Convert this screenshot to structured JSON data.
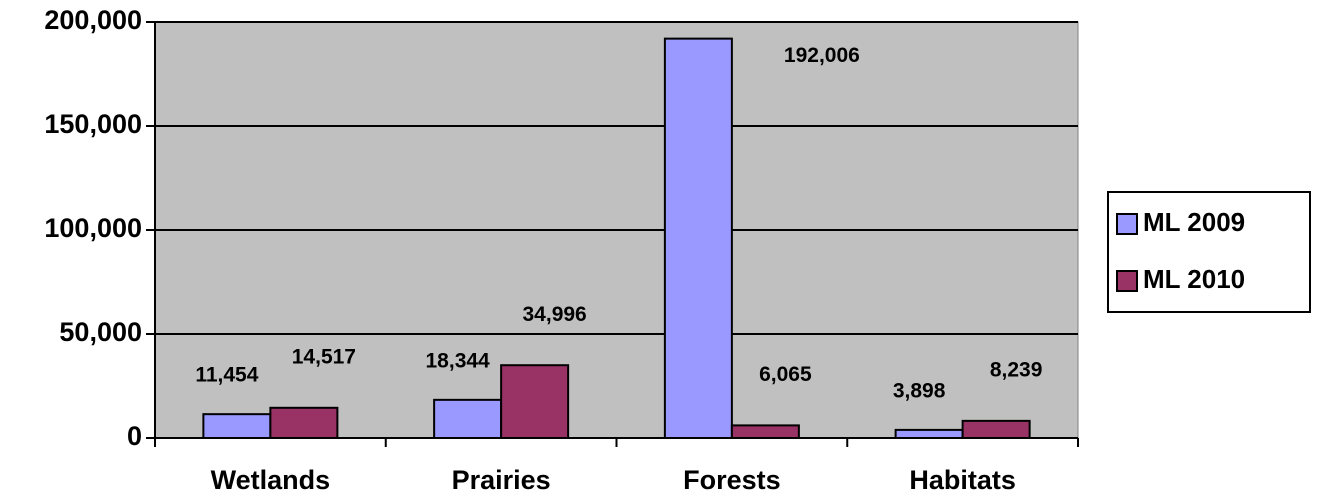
{
  "chart_data": {
    "type": "bar",
    "categories": [
      "Wetlands",
      "Prairies",
      "Forests",
      "Habitats"
    ],
    "series": [
      {
        "name": "ML 2009",
        "color": "#9999ff",
        "values": [
          11454,
          18344,
          192006,
          3898
        ],
        "value_labels": [
          "11,454",
          "18,344",
          "192,006",
          "3,898"
        ]
      },
      {
        "name": "ML 2010",
        "color": "#993366",
        "values": [
          14517,
          34996,
          6065,
          8239
        ],
        "value_labels": [
          "14,517",
          "34,996",
          "6,065",
          "8,239"
        ]
      }
    ],
    "ylim": [
      0,
      200000
    ],
    "yticks": [
      {
        "value": 0,
        "label": "0"
      },
      {
        "value": 50000,
        "label": "50,000"
      },
      {
        "value": 100000,
        "label": "100,000"
      },
      {
        "value": 150000,
        "label": "150,000"
      },
      {
        "value": 200000,
        "label": "200,000"
      }
    ],
    "grid": true,
    "legend": "right",
    "background": "#c0c0c0"
  }
}
